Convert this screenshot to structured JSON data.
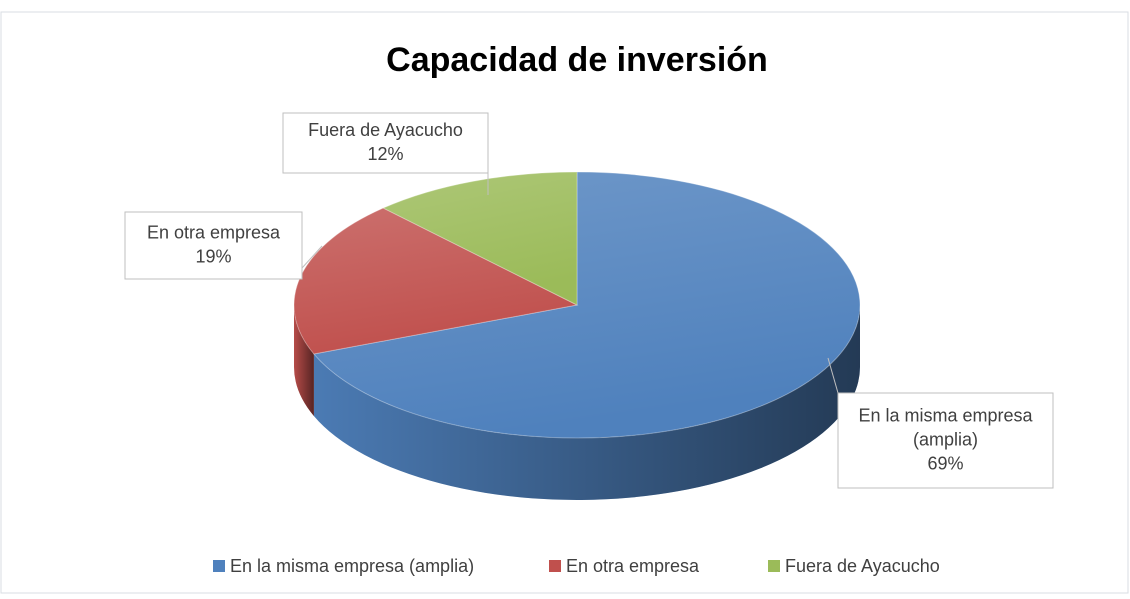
{
  "chart_data": {
    "type": "pie",
    "title": "Capacidad de inversión",
    "categories": [
      "En la misma empresa (amplia)",
      "En otra empresa",
      "Fuera de Ayacucho"
    ],
    "values": [
      69,
      19,
      12
    ],
    "value_labels": [
      "69%",
      "19%",
      "12%"
    ],
    "colors": [
      "#4f81bd",
      "#c0504d",
      "#9bbb59"
    ],
    "legend": "bottom"
  }
}
